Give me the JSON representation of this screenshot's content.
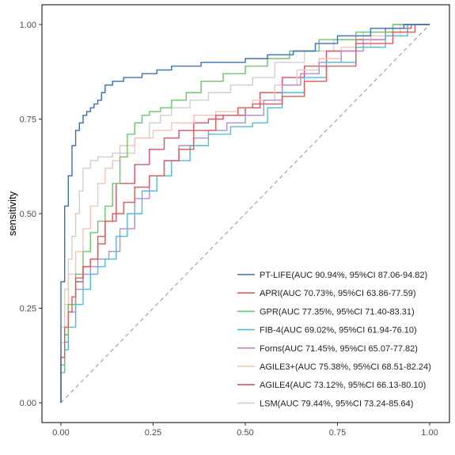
{
  "chart_data": {
    "type": "line",
    "title": "",
    "xlabel": "",
    "ylabel": "sensitivity",
    "xlim": [
      0,
      1
    ],
    "ylim": [
      0,
      1
    ],
    "x_ticks": [
      "0.00",
      "0.25",
      "0.50",
      "0.75",
      "1.00"
    ],
    "y_ticks": [
      "0.00",
      "0.25",
      "0.50",
      "0.75",
      "1.00"
    ],
    "grid": false,
    "legend_position": "bottom-right",
    "reference_line": {
      "style": "dashed",
      "color": "#aaaaaa",
      "points": [
        [
          0,
          0
        ],
        [
          1,
          1
        ]
      ]
    },
    "series": [
      {
        "name": "PT-LIFE(AUC 90.94%, 95%CI 87.06-94.82)",
        "color": "#3b6fb6",
        "points": [
          [
            0,
            0
          ],
          [
            0,
            0.22
          ],
          [
            0.01,
            0.32
          ],
          [
            0.02,
            0.52
          ],
          [
            0.03,
            0.6
          ],
          [
            0.04,
            0.68
          ],
          [
            0.05,
            0.72
          ],
          [
            0.06,
            0.74
          ],
          [
            0.07,
            0.76
          ],
          [
            0.08,
            0.77
          ],
          [
            0.09,
            0.78
          ],
          [
            0.1,
            0.79
          ],
          [
            0.11,
            0.8
          ],
          [
            0.12,
            0.82
          ],
          [
            0.14,
            0.84
          ],
          [
            0.17,
            0.85
          ],
          [
            0.22,
            0.86
          ],
          [
            0.26,
            0.87
          ],
          [
            0.3,
            0.88
          ],
          [
            0.38,
            0.89
          ],
          [
            0.5,
            0.9
          ],
          [
            0.56,
            0.91
          ],
          [
            0.63,
            0.92
          ],
          [
            0.69,
            0.93
          ],
          [
            0.75,
            0.95
          ],
          [
            0.84,
            0.97
          ],
          [
            0.93,
            0.99
          ],
          [
            1,
            1
          ]
        ]
      },
      {
        "name": "APRI(AUC 70.73%, 95%CI 63.86-77.59)",
        "color": "#e05a5a",
        "points": [
          [
            0,
            0
          ],
          [
            0.01,
            0.12
          ],
          [
            0.02,
            0.2
          ],
          [
            0.03,
            0.24
          ],
          [
            0.04,
            0.28
          ],
          [
            0.06,
            0.33
          ],
          [
            0.08,
            0.36
          ],
          [
            0.1,
            0.38
          ],
          [
            0.12,
            0.44
          ],
          [
            0.14,
            0.48
          ],
          [
            0.17,
            0.5
          ],
          [
            0.2,
            0.53
          ],
          [
            0.24,
            0.57
          ],
          [
            0.28,
            0.6
          ],
          [
            0.32,
            0.64
          ],
          [
            0.36,
            0.67
          ],
          [
            0.42,
            0.72
          ],
          [
            0.48,
            0.76
          ],
          [
            0.52,
            0.78
          ],
          [
            0.6,
            0.79
          ],
          [
            0.66,
            0.81
          ],
          [
            0.72,
            0.85
          ],
          [
            0.8,
            0.89
          ],
          [
            0.9,
            0.95
          ],
          [
            0.96,
            0.98
          ],
          [
            1,
            1
          ]
        ]
      },
      {
        "name": "GPR(AUC 77.35%, 95%CI 71.40-83.31)",
        "color": "#6cc56a",
        "points": [
          [
            0,
            0
          ],
          [
            0.01,
            0.1
          ],
          [
            0.02,
            0.18
          ],
          [
            0.04,
            0.26
          ],
          [
            0.06,
            0.34
          ],
          [
            0.08,
            0.4
          ],
          [
            0.1,
            0.45
          ],
          [
            0.12,
            0.48
          ],
          [
            0.14,
            0.52
          ],
          [
            0.16,
            0.58
          ],
          [
            0.18,
            0.65
          ],
          [
            0.2,
            0.71
          ],
          [
            0.22,
            0.74
          ],
          [
            0.24,
            0.76
          ],
          [
            0.27,
            0.77
          ],
          [
            0.3,
            0.78
          ],
          [
            0.34,
            0.8
          ],
          [
            0.38,
            0.82
          ],
          [
            0.44,
            0.85
          ],
          [
            0.5,
            0.87
          ],
          [
            0.56,
            0.89
          ],
          [
            0.62,
            0.91
          ],
          [
            0.7,
            0.93
          ],
          [
            0.8,
            0.96
          ],
          [
            0.9,
            0.98
          ],
          [
            1,
            1
          ]
        ]
      },
      {
        "name": "FIB-4(AUC 69.02%, 95%CI 61.94-76.10)",
        "color": "#4bbfd8",
        "points": [
          [
            0,
            0
          ],
          [
            0.01,
            0.08
          ],
          [
            0.02,
            0.14
          ],
          [
            0.04,
            0.2
          ],
          [
            0.06,
            0.26
          ],
          [
            0.08,
            0.3
          ],
          [
            0.1,
            0.34
          ],
          [
            0.12,
            0.36
          ],
          [
            0.15,
            0.38
          ],
          [
            0.18,
            0.44
          ],
          [
            0.22,
            0.5
          ],
          [
            0.26,
            0.56
          ],
          [
            0.3,
            0.6
          ],
          [
            0.35,
            0.64
          ],
          [
            0.4,
            0.68
          ],
          [
            0.46,
            0.71
          ],
          [
            0.52,
            0.73
          ],
          [
            0.56,
            0.74
          ],
          [
            0.6,
            0.78
          ],
          [
            0.66,
            0.82
          ],
          [
            0.72,
            0.86
          ],
          [
            0.8,
            0.9
          ],
          [
            0.88,
            0.94
          ],
          [
            0.94,
            0.97
          ],
          [
            1,
            1
          ]
        ]
      },
      {
        "name": "Forns(AUC 71.45%, 95%CI 65.07-77.82)",
        "color": "#b58ad6",
        "points": [
          [
            0,
            0
          ],
          [
            0.01,
            0.1
          ],
          [
            0.02,
            0.16
          ],
          [
            0.04,
            0.24
          ],
          [
            0.06,
            0.3
          ],
          [
            0.08,
            0.34
          ],
          [
            0.1,
            0.36
          ],
          [
            0.13,
            0.38
          ],
          [
            0.16,
            0.4
          ],
          [
            0.2,
            0.46
          ],
          [
            0.24,
            0.54
          ],
          [
            0.28,
            0.6
          ],
          [
            0.32,
            0.64
          ],
          [
            0.36,
            0.68
          ],
          [
            0.4,
            0.7
          ],
          [
            0.45,
            0.72
          ],
          [
            0.5,
            0.74
          ],
          [
            0.55,
            0.76
          ],
          [
            0.6,
            0.8
          ],
          [
            0.65,
            0.84
          ],
          [
            0.7,
            0.87
          ],
          [
            0.76,
            0.9
          ],
          [
            0.82,
            0.93
          ],
          [
            0.88,
            0.96
          ],
          [
            0.94,
            0.98
          ],
          [
            1,
            1
          ]
        ]
      },
      {
        "name": "AGILE3+(AUC 75.38%, 95%CI 68.51-82.24)",
        "color": "#f6c4b4",
        "points": [
          [
            0,
            0
          ],
          [
            0.01,
            0.16
          ],
          [
            0.02,
            0.26
          ],
          [
            0.04,
            0.34
          ],
          [
            0.06,
            0.4
          ],
          [
            0.08,
            0.46
          ],
          [
            0.1,
            0.52
          ],
          [
            0.12,
            0.58
          ],
          [
            0.14,
            0.62
          ],
          [
            0.16,
            0.64
          ],
          [
            0.2,
            0.68
          ],
          [
            0.25,
            0.7
          ],
          [
            0.3,
            0.72
          ],
          [
            0.36,
            0.74
          ],
          [
            0.42,
            0.76
          ],
          [
            0.48,
            0.77
          ],
          [
            0.52,
            0.78
          ],
          [
            0.58,
            0.8
          ],
          [
            0.64,
            0.84
          ],
          [
            0.7,
            0.88
          ],
          [
            0.76,
            0.91
          ],
          [
            0.84,
            0.94
          ],
          [
            0.92,
            0.97
          ],
          [
            1,
            1
          ]
        ]
      },
      {
        "name": "AGILE4(AUC 73.12%, 95%CI 66.13-80.10)",
        "color": "#d9506b",
        "points": [
          [
            0,
            0
          ],
          [
            0.01,
            0.12
          ],
          [
            0.02,
            0.18
          ],
          [
            0.04,
            0.26
          ],
          [
            0.06,
            0.32
          ],
          [
            0.08,
            0.36
          ],
          [
            0.1,
            0.38
          ],
          [
            0.12,
            0.42
          ],
          [
            0.15,
            0.48
          ],
          [
            0.2,
            0.58
          ],
          [
            0.24,
            0.63
          ],
          [
            0.28,
            0.67
          ],
          [
            0.32,
            0.7
          ],
          [
            0.36,
            0.72
          ],
          [
            0.4,
            0.74
          ],
          [
            0.44,
            0.75
          ],
          [
            0.5,
            0.76
          ],
          [
            0.54,
            0.78
          ],
          [
            0.6,
            0.82
          ],
          [
            0.66,
            0.86
          ],
          [
            0.72,
            0.89
          ],
          [
            0.8,
            0.93
          ],
          [
            0.88,
            0.96
          ],
          [
            0.95,
            0.99
          ],
          [
            1,
            1
          ]
        ]
      },
      {
        "name": "LSM(AUC 79.44%, 95%CI 73.24-85.64)",
        "color": "#cfcfcf",
        "points": [
          [
            0,
            0
          ],
          [
            0.01,
            0.2
          ],
          [
            0.02,
            0.3
          ],
          [
            0.03,
            0.38
          ],
          [
            0.04,
            0.44
          ],
          [
            0.05,
            0.5
          ],
          [
            0.06,
            0.56
          ],
          [
            0.08,
            0.62
          ],
          [
            0.1,
            0.64
          ],
          [
            0.14,
            0.65
          ],
          [
            0.2,
            0.66
          ],
          [
            0.24,
            0.7
          ],
          [
            0.27,
            0.74
          ],
          [
            0.3,
            0.76
          ],
          [
            0.35,
            0.78
          ],
          [
            0.4,
            0.8
          ],
          [
            0.46,
            0.82
          ],
          [
            0.52,
            0.84
          ],
          [
            0.58,
            0.86
          ],
          [
            0.66,
            0.9
          ],
          [
            0.74,
            0.93
          ],
          [
            0.82,
            0.96
          ],
          [
            0.9,
            0.98
          ],
          [
            1,
            1
          ]
        ]
      }
    ]
  }
}
